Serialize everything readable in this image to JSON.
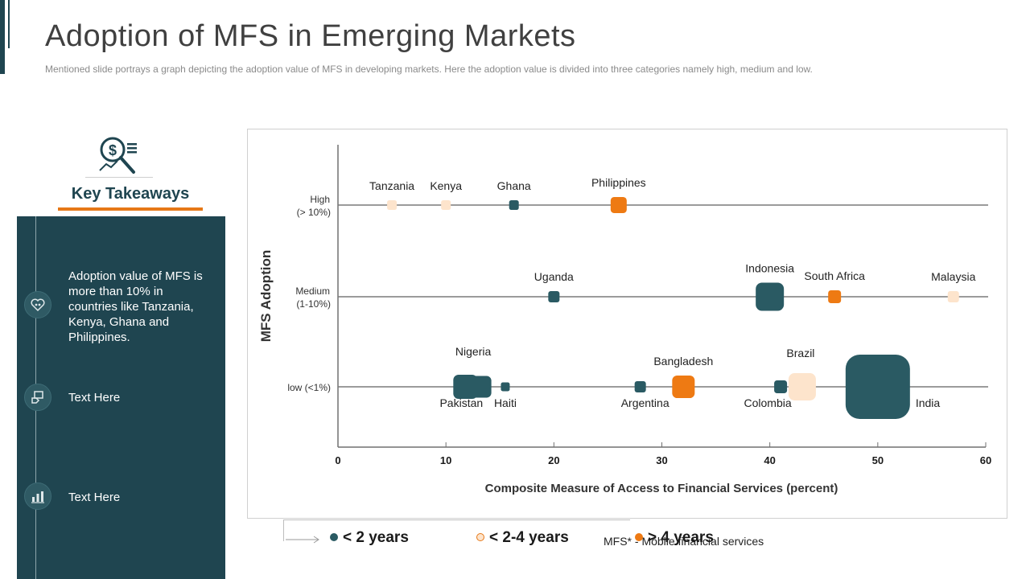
{
  "header": {
    "title": "Adoption of MFS in Emerging Markets",
    "subtitle": "Mentioned slide portrays a graph depicting the adoption value of MFS in developing markets. Here the adoption value is divided into three categories namely high, medium and low."
  },
  "takeaways": {
    "title": "Key Takeaways",
    "items": [
      {
        "text": "Adoption value of MFS is more than 10% in countries like Tanzania, Kenya, Ghana and Philippines.",
        "icon": "heart-people-icon"
      },
      {
        "text": "Text Here",
        "icon": "hand-card-icon"
      },
      {
        "text": "Text Here",
        "icon": "bar-chart-icon"
      }
    ]
  },
  "colors": {
    "dark": "#2a5a63",
    "light": "#fde4cc",
    "orange": "#ee7a13"
  },
  "chart_data": {
    "type": "scatter",
    "xlabel": "Composite Measure of Access to Financial Services (percent)",
    "ylabel": "MFS Adoption",
    "xlim": [
      0,
      60
    ],
    "xticks": [
      0,
      10,
      20,
      30,
      40,
      50,
      60
    ],
    "levels": [
      {
        "id": "high",
        "label": [
          "High",
          "(> 10%)"
        ]
      },
      {
        "id": "medium",
        "label": [
          "Medium",
          "(1-10%)"
        ]
      },
      {
        "id": "low",
        "label": [
          "low (<1%)"
        ]
      }
    ],
    "points": [
      {
        "name": "Tanzania",
        "x": 5,
        "level": "high",
        "group": "light",
        "size": 12,
        "label_pos": "above"
      },
      {
        "name": "Kenya",
        "x": 10,
        "level": "high",
        "group": "light",
        "size": 12,
        "label_pos": "above"
      },
      {
        "name": "Ghana",
        "x": 16.3,
        "level": "high",
        "group": "dark",
        "size": 12,
        "label_pos": "above"
      },
      {
        "name": "Philippines",
        "x": 26,
        "level": "high",
        "group": "orange",
        "size": 20,
        "label_pos": "above"
      },
      {
        "name": "Uganda",
        "x": 20,
        "level": "medium",
        "group": "dark",
        "size": 14,
        "label_pos": "above"
      },
      {
        "name": "Indonesia",
        "x": 40,
        "level": "medium",
        "group": "dark",
        "size": 35,
        "label_pos": "above"
      },
      {
        "name": "South Africa",
        "x": 46,
        "level": "medium",
        "group": "orange",
        "size": 16,
        "label_pos": "above"
      },
      {
        "name": "Malaysia",
        "x": 57,
        "level": "medium",
        "group": "light",
        "size": 14,
        "label_pos": "above"
      },
      {
        "name": "Pakistan",
        "x": 11.8,
        "level": "low",
        "group": "dark",
        "size": 30,
        "label_pos": "below"
      },
      {
        "name": "Nigeria",
        "x": 13.2,
        "level": "low",
        "group": "dark",
        "size": 27,
        "label_pos": "above"
      },
      {
        "name": "Haiti",
        "x": 15.5,
        "level": "low",
        "group": "dark",
        "size": 11,
        "label_pos": "below"
      },
      {
        "name": "Argentina",
        "x": 28,
        "level": "low",
        "group": "dark",
        "size": 14,
        "label_pos": "below"
      },
      {
        "name": "Bangladesh",
        "x": 32,
        "level": "low",
        "group": "orange",
        "size": 28,
        "label_pos": "above"
      },
      {
        "name": "Colombia",
        "x": 41,
        "level": "low",
        "group": "dark",
        "size": 16,
        "label_pos": "below"
      },
      {
        "name": "Brazil",
        "x": 43,
        "level": "low",
        "group": "light",
        "size": 34,
        "label_pos": "above"
      },
      {
        "name": "India",
        "x": 50,
        "level": "low",
        "group": "dark",
        "size": 80,
        "label_pos": "right"
      }
    ]
  },
  "legend": [
    {
      "label": "< 2 years",
      "group": "dark"
    },
    {
      "label": "< 2-4 years",
      "group": "light"
    },
    {
      "label": "> 4 years",
      "group": "orange"
    }
  ],
  "footnote": "MFS* - Mobile financial services"
}
